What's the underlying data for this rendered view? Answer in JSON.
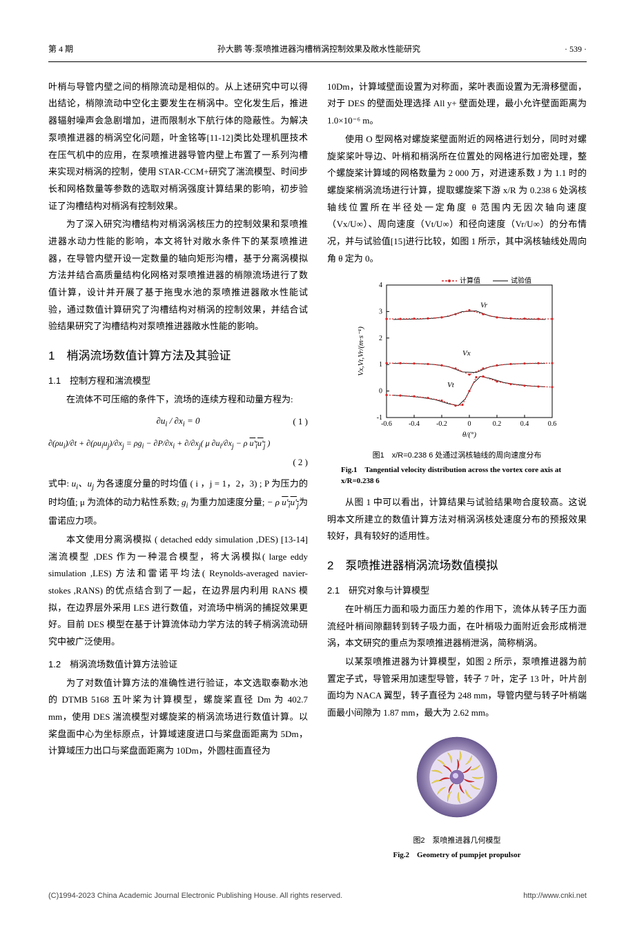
{
  "header": {
    "left": "第 4 期",
    "center": "孙大鹏 等:泵喷推进器沟槽梢涡控制效果及敞水性能研究",
    "right": "· 539 ·"
  },
  "left_col": {
    "para1": "叶梢与导管内壁之间的梢隙流动是相似的。从上述研究中可以得出结论，梢隙流动中空化主要发生在梢涡中。空化发生后，推进器辐射噪声会急剧增加，进而限制水下航行体的隐蔽性。为解决泵喷推进器的梢涡空化问题，叶金铭等[11-12]类比处理机匣技术在压气机中的应用，在泵喷推进器导管内壁上布置了一系列沟槽来实现对梢涡的控制，使用 STAR-CCM+研究了湍流模型、时间步长和网格数量等参数的选取对梢涡强度计算结果的影响，初步验证了沟槽结构对梢涡有控制效果。",
    "para2": "为了深入研究沟槽结构对梢涡涡核压力的控制效果和泵喷推进器水动力性能的影响，本文将针对敞水条件下的某泵喷推进器，在导管内壁开设一定数量的轴向矩形沟槽，基于分离涡模拟方法并结合高质量结构化网格对泵喷推进器的梢隙流场进行了数值计算，设计并开展了基于拖曳水池的泵喷推进器敞水性能试验，通过数值计算研究了沟槽结构对梢涡的控制效果，并结合试验结果研究了沟槽结构对泵喷推进器敞水性能的影响。",
    "sec1_title": "1　梢涡流场数值计算方法及其验证",
    "sec1_1_title": "1.1　控制方程和湍流模型",
    "sec1_1_p1": "在流体不可压缩的条件下，流场的连续方程和动量方程为:",
    "eq1_num": "( 1 )",
    "eq2_num": "( 2 )",
    "sec1_1_p2_a": "式中: ",
    "sec1_1_p2_b": " 为各速度分量的时均值 ( i ，j = 1，2，3) ; P 为压力的时均值; μ 为流体的动力粘性系数; ",
    "sec1_1_p2_c": " 为重力加速度分量; ",
    "sec1_1_p2_d": "为雷诺应力项。",
    "sec1_1_p3": "本文使用分离涡模拟 ( detached eddy simulation ,DES) [13-14] 湍流模型 ,DES 作为一种混合模型，将大涡模拟( large eddy simulation ,LES) 方法和雷诺平均法( Reynolds-averaged navier-stokes ,RANS) 的优点结合到了一起，在边界层内利用 RANS 模拟，在边界层外采用 LES 进行数值，对流场中梢涡的捕捉效果更好。目前 DES 模型在基于计算流体动力学方法的转子梢涡流动研究中被广泛使用。",
    "sec1_2_title": "1.2　梢涡流场数值计算方法验证",
    "sec1_2_p1": "为了对数值计算方法的准确性进行验证，本文选取泰勒水池的 DTMB 5168 五叶桨为计算模型，螺旋桨直径 Dm 为 402.7 mm，使用 DES 湍流模型对螺旋桨的梢涡流场进行数值计算。以桨盘面中心为坐标原点，计算域速度进口与桨盘面距离为 5Dm，计算域压力出口与桨盘面距离为 10Dm，外圆柱面直径为"
  },
  "right_col": {
    "para1": "10Dm，计算域壁面设置为对称面，桨叶表面设置为无滑移壁面，对于 DES 的壁面处理选择 All y+ 壁面处理，最小允许壁面距离为 1.0×10⁻⁶ m。",
    "para2": "使用 O 型网格对螺旋桨壁面附近的网格进行划分，同时对螺旋桨桨叶导边、叶梢和梢涡所在位置处的网格进行加密处理，整个螺旋桨计算域的网格数量为 2 000 万，对进速系数 J 为 1.1 时的螺旋桨梢涡流场进行计算，提取螺旋桨下游 x/R 为 0.238 6 处涡核轴线位置所在半径处一定角度 θ 范围内无因次轴向速度（Vx/U∞）、周向速度（Vt/U∞）和径向速度（Vr/U∞）的分布情况，并与试验值[15]进行比较，如图 1 所示，其中涡核轴线处周向角 θ 定为 0。",
    "fig1": {
      "legend_calc": "计算值",
      "legend_exp": "试验值",
      "ylabel": "Vx,Vt,Vr/(m·s⁻¹)",
      "xlabel": "θ/(°)",
      "xlim": [
        -0.6,
        0.6
      ],
      "ylim": [
        -1,
        4
      ],
      "xticks": [
        -0.6,
        -0.4,
        -0.2,
        0,
        0.2,
        0.4,
        0.6
      ],
      "yticks": [
        -1,
        0,
        1,
        2,
        3,
        4
      ],
      "series_labels": {
        "vr": "Vr",
        "vx": "Vx",
        "vt": "Vt"
      },
      "colors": {
        "calc": "#d62728",
        "exp": "#000000",
        "axis": "#000000"
      },
      "line_calc": {
        "vr_x": [
          -0.6,
          -0.5,
          -0.4,
          -0.3,
          -0.2,
          -0.1,
          0,
          0.1,
          0.2,
          0.3,
          0.4,
          0.5,
          0.6
        ],
        "vr_y": [
          2.72,
          2.72,
          2.73,
          2.74,
          2.78,
          2.9,
          3.05,
          2.9,
          2.78,
          2.74,
          2.73,
          2.72,
          2.72
        ],
        "vx_x": [
          -0.6,
          -0.5,
          -0.4,
          -0.3,
          -0.2,
          -0.1,
          0,
          0.1,
          0.2,
          0.3,
          0.4,
          0.5,
          0.6
        ],
        "vx_y": [
          1.05,
          1.05,
          1.04,
          1.02,
          0.97,
          0.85,
          0.62,
          0.85,
          0.97,
          1.02,
          1.04,
          1.05,
          1.05
        ],
        "vt_x": [
          -0.6,
          -0.5,
          -0.4,
          -0.3,
          -0.2,
          -0.1,
          -0.05,
          0,
          0.05,
          0.1,
          0.2,
          0.3,
          0.4,
          0.5,
          0.6
        ],
        "vt_y": [
          -0.15,
          -0.17,
          -0.2,
          -0.26,
          -0.36,
          -0.55,
          -0.52,
          0,
          0.52,
          0.55,
          0.36,
          0.26,
          0.2,
          0.17,
          0.15
        ]
      },
      "points_exp": {
        "vr_x": [
          -0.55,
          -0.45,
          -0.35,
          -0.25,
          -0.15,
          -0.05,
          0.05,
          0.15,
          0.25,
          0.35,
          0.45,
          0.55
        ],
        "vr_y": [
          2.7,
          2.71,
          2.72,
          2.75,
          2.82,
          3.0,
          3.02,
          2.83,
          2.75,
          2.72,
          2.71,
          2.7
        ],
        "vx_x": [
          -0.55,
          -0.45,
          -0.35,
          -0.25,
          -0.15,
          -0.05,
          0.05,
          0.15,
          0.25,
          0.35,
          0.45,
          0.55
        ],
        "vx_y": [
          1.04,
          1.04,
          1.03,
          1.0,
          0.92,
          0.72,
          0.7,
          0.92,
          1.0,
          1.03,
          1.04,
          1.04
        ],
        "vt_x": [
          -0.55,
          -0.45,
          -0.35,
          -0.25,
          -0.15,
          -0.08,
          -0.03,
          0.03,
          0.08,
          0.15,
          0.25,
          0.35,
          0.45,
          0.55
        ],
        "vt_y": [
          -0.16,
          -0.19,
          -0.24,
          -0.32,
          -0.48,
          -0.55,
          -0.3,
          0.3,
          0.55,
          0.48,
          0.32,
          0.24,
          0.19,
          0.16
        ]
      },
      "caption_cn": "图1　x/R=0.238 6 处通过涡核轴线的周向速度分布",
      "caption_en": "Fig.1　Tangential velocity distribution across the vortex core axis at x/R=0.238 6"
    },
    "para3": "从图 1 中可以看出，计算结果与试验结果吻合度较高。这说明本文所建立的数值计算方法对梢涡涡核处速度分布的预报效果较好，具有较好的适用性。",
    "sec2_title": "2　泵喷推进器梢涡流场数值模拟",
    "sec2_1_title": "2.1　研究对象与计算模型",
    "sec2_1_p1": "在叶梢压力面和吸力面压力差的作用下，流体从转子压力面流经叶梢间隙翻转到转子吸力面，在叶梢吸力面附近会形成梢泄涡，本文研究的重点为泵喷推进器梢泄涡，简称梢涡。",
    "sec2_1_p2": "以某泵喷推进器为计算模型，如图 2 所示，泵喷推进器为前置定子式，导管采用加速型导管，转子 7 叶，定子 13 叶，叶片剖面均为 NACA 翼型，转子直径为 248 mm，导管内壁与转子叶梢端面最小间隙为 1.87 mm，最大为 2.62 mm。",
    "fig2": {
      "colors": {
        "duct": "#b8a8d0",
        "rotor": "#d62728",
        "stator": "#f2d94e",
        "hub": "#8a6fb0"
      },
      "caption_cn": "图2　泵喷推进器几何模型",
      "caption_en": "Fig.2　Geometry of pumpjet propulsor"
    }
  },
  "footer": {
    "left": "(C)1994-2023 China Academic Journal Electronic Publishing House. All rights reserved.",
    "right": "http://www.cnki.net"
  }
}
